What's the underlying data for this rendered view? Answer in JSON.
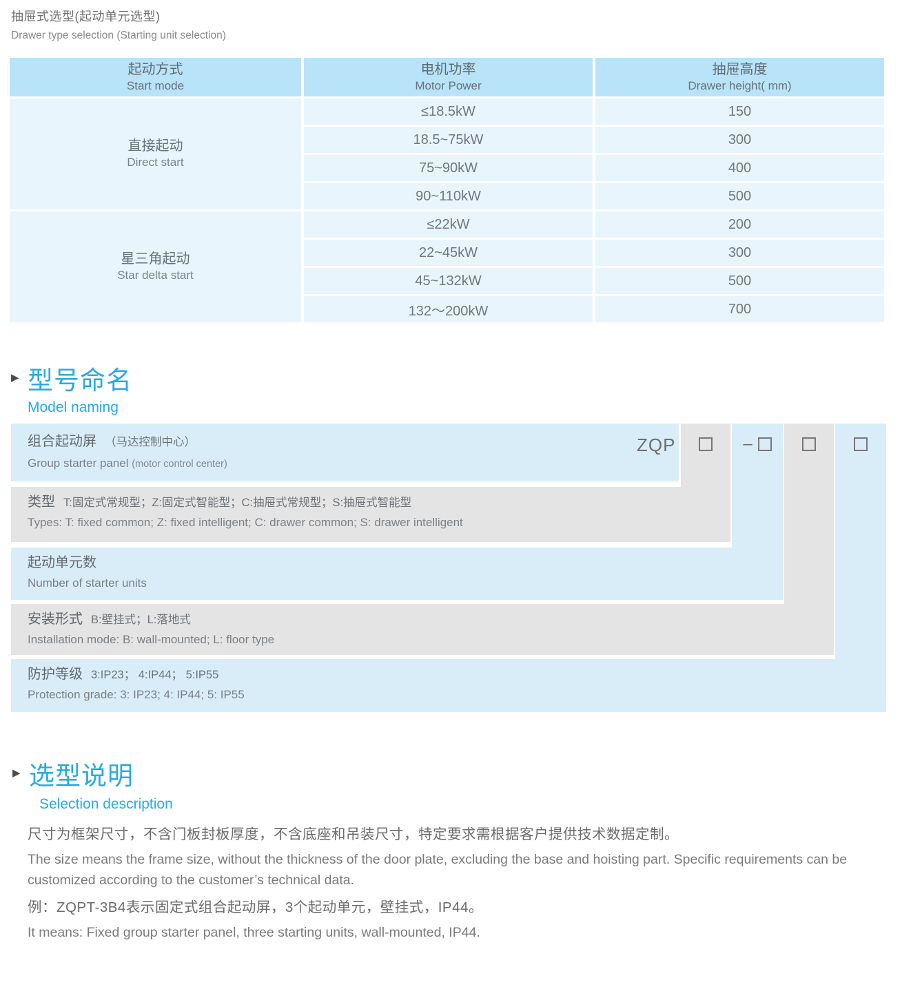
{
  "page": {
    "title_zh": "抽屉式选型(起动单元选型)",
    "title_en": "Drawer type selection (Starting unit selection)"
  },
  "colors": {
    "accent": "#29abe2",
    "header_blue": "#b9e3f8",
    "row_blue": "#e9f5fd",
    "diagram_blue": "#d9edf9",
    "diagram_gray": "#e4e4e5"
  },
  "table": {
    "headers": [
      {
        "zh": "起动方式",
        "en": "Start mode"
      },
      {
        "zh": "电机功率",
        "en": "Motor Power"
      },
      {
        "zh": "抽屉高度",
        "en": "Drawer height( mm)"
      }
    ],
    "groups": [
      {
        "mode_zh": "直接起动",
        "mode_en": "Direct start",
        "rows": [
          {
            "power": "≤18.5kW",
            "height": "150"
          },
          {
            "power": "18.5~75kW",
            "height": "300"
          },
          {
            "power": "75~90kW",
            "height": "400"
          },
          {
            "power": "90~110kW",
            "height": "500"
          }
        ]
      },
      {
        "mode_zh": "星三角起动",
        "mode_en": "Star delta start",
        "rows": [
          {
            "power": "≤22kW",
            "height": "200"
          },
          {
            "power": "22~45kW",
            "height": "300"
          },
          {
            "power": "45~132kW",
            "height": "500"
          },
          {
            "power": "132～200kW",
            "height": "700"
          }
        ]
      }
    ]
  },
  "model_naming": {
    "marker": "▶",
    "title_zh": "型号命名",
    "title_en": "Model naming",
    "code": "ZQP",
    "dash": "–",
    "rows": [
      {
        "zh_main": "组合起动屏",
        "zh_sub": "（马达控制中心）",
        "en_main": "Group starter panel ",
        "en_sub": "(motor control center)"
      },
      {
        "zh_main": "类型",
        "zh_sub": "T:固定式常规型；Z:固定式智能型；C:抽屉式常规型；S:抽屉式智能型",
        "en_main": "Types: T: fixed common; Z: fixed intelligent; C: drawer common; S: drawer intelligent",
        "en_sub": ""
      },
      {
        "zh_main": "起动单元数",
        "zh_sub": "",
        "en_main": "Number of starter units",
        "en_sub": ""
      },
      {
        "zh_main": "安装形式",
        "zh_sub": "B:壁挂式；L:落地式",
        "en_main": "Installation mode: B: wall-mounted; L: floor type",
        "en_sub": ""
      },
      {
        "zh_main": "防护等级",
        "zh_sub": "3:IP23； 4:IP44； 5:IP55",
        "en_main": "Protection grade:  3: IP23; 4: IP44; 5: IP55",
        "en_sub": ""
      }
    ]
  },
  "selection": {
    "marker": "▶",
    "title_zh": "选型说明",
    "title_en": "Selection description",
    "para1_zh": "尺寸为框架尺寸，不含门板封板厚度，不含底座和吊装尺寸，特定要求需根据客户提供技术数据定制。",
    "para1_en": "The size means the frame size, without the thickness of the door plate, excluding the base and hoisting part. Specific requirements can be\ncustomized according to the customer’s technical data.",
    "para2_zh": "例：ZQPT-3B4表示固定式组合起动屏，3个起动单元，壁挂式，IP44。",
    "para2_en": "It means: Fixed group starter panel, three starting units, wall-mounted, IP44."
  }
}
